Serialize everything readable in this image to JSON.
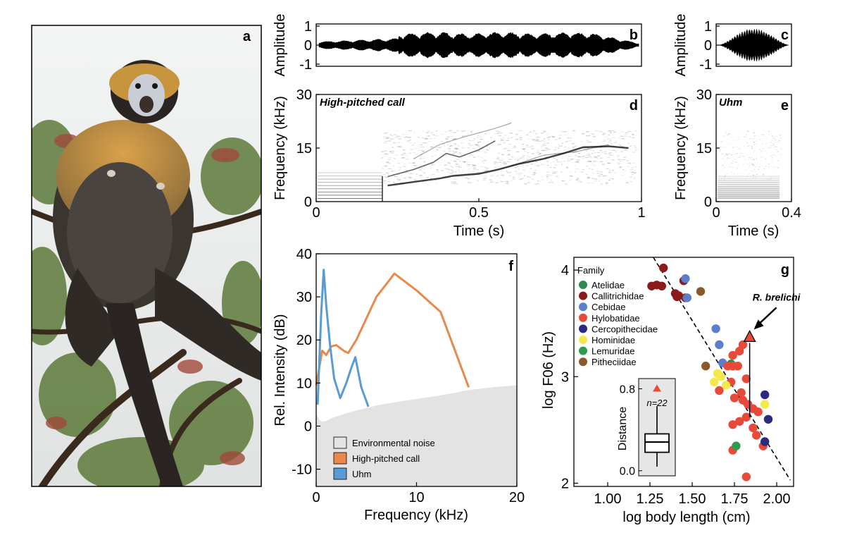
{
  "panels": {
    "a": {
      "letter": "a"
    },
    "b": {
      "letter": "b"
    },
    "c": {
      "letter": "c"
    },
    "d": {
      "letter": "d"
    },
    "e": {
      "letter": "e"
    },
    "f": {
      "letter": "f"
    },
    "g": {
      "letter": "g"
    }
  },
  "colors": {
    "high_pitched": "#e8894b",
    "uhm": "#5b9bd3",
    "noise": "#e3e3e3",
    "atelidae": "#2e8b4f",
    "callitrichidae": "#8b1a1a",
    "cebidae": "#5b7fcc",
    "hylobatidae": "#e84a3a",
    "cercopithecidae": "#2b2a80",
    "hominidae": "#f5e84a",
    "lemuridae": "#2e9b50",
    "pitheciidae": "#8b5a2b"
  },
  "chart_data": [
    {
      "panel": "b",
      "type": "line",
      "title": "",
      "xlabel": "",
      "ylabel": "Amplitude",
      "xlim": [
        0,
        1
      ],
      "ylim": [
        -1,
        1
      ],
      "yticks": [
        "1",
        "0",
        "-1"
      ]
    },
    {
      "panel": "c",
      "type": "line",
      "title": "",
      "xlabel": "",
      "ylabel": "Amplitude",
      "xlim": [
        0,
        0.4
      ],
      "ylim": [
        -1,
        1
      ],
      "yticks": [
        "1",
        "0",
        "-1"
      ]
    },
    {
      "panel": "d",
      "type": "heatmap",
      "title": "High-pitched call",
      "xlabel": "Time (s)",
      "ylabel": "Frequency (kHz)",
      "xlim": [
        0,
        1
      ],
      "ylim": [
        0,
        30
      ],
      "xticks": [
        "0",
        "0.5",
        "1"
      ],
      "yticks": [
        "30",
        "15",
        "0"
      ]
    },
    {
      "panel": "e",
      "type": "heatmap",
      "title": "Uhm",
      "xlabel": "Time (s)",
      "ylabel": "Frequency (kHz)",
      "xlim": [
        0,
        0.4
      ],
      "ylim": [
        0,
        30
      ],
      "xticks": [
        "0",
        "0.4"
      ],
      "yticks": [
        "30",
        "15",
        "0"
      ]
    },
    {
      "panel": "f",
      "type": "line",
      "title": "",
      "xlabel": "Frequency (kHz)",
      "ylabel": "Rel. Intensity (dB)",
      "xlim": [
        0,
        20
      ],
      "ylim": [
        -14,
        40
      ],
      "xticks": [
        "0",
        "10",
        "20"
      ],
      "yticks": [
        "40",
        "30",
        "20",
        "10",
        "0",
        "-10"
      ],
      "legend": [
        "Environmental noise",
        "High-pitched call",
        "Uhm"
      ],
      "legend_position": "bottom-right",
      "noise": {
        "name": "Environmental noise",
        "x": [
          0,
          0.3,
          0.6,
          1,
          1.5,
          2,
          3,
          4,
          5,
          6,
          8,
          10,
          12,
          14,
          15,
          16,
          18,
          20
        ],
        "y": [
          3,
          1.5,
          1,
          1.2,
          1.8,
          2.2,
          3,
          3.6,
          4.2,
          4.8,
          5.6,
          6.3,
          7,
          7.8,
          8.3,
          8.6,
          9.1,
          9.5
        ]
      },
      "series": [
        {
          "name": "High-pitched call",
          "x": [
            0,
            0.6,
            1.0,
            1.5,
            2.0,
            2.8,
            3.2,
            4.0,
            5.0,
            6.0,
            7.0,
            7.8,
            10.0,
            12.4,
            15.2
          ],
          "y": [
            9.5,
            17.5,
            16.5,
            18.5,
            18.8,
            17.4,
            17.0,
            20.0,
            25.0,
            30.0,
            33.0,
            35.4,
            31.5,
            26.5,
            9.0
          ]
        },
        {
          "name": "Uhm",
          "x": [
            0.15,
            0.5,
            0.75,
            1.0,
            1.4,
            1.8,
            2.4,
            3.0,
            3.5,
            3.9,
            4.5,
            5.2
          ],
          "y": [
            5.0,
            26.0,
            36.3,
            28.0,
            18.5,
            11.0,
            6.5,
            10.0,
            13.5,
            16.0,
            9.0,
            4.5
          ]
        }
      ]
    },
    {
      "panel": "g",
      "type": "scatter",
      "title": "",
      "xlabel": "log body length (cm)",
      "ylabel": "log F06 (Hz)",
      "xlim": [
        0.8,
        2.1
      ],
      "ylim": [
        1.97,
        4.12
      ],
      "xticks": [
        "1.00",
        "1.25",
        "1.50",
        "1.75",
        "2.00"
      ],
      "yticks": [
        "4",
        "3",
        "2"
      ],
      "legend_title": "Family",
      "legend_position": "top-left",
      "highlight": {
        "label": "R. brelichi",
        "x": 1.84,
        "y": 3.37,
        "y_pred": 2.62
      },
      "fit_line": {
        "x": [
          1.27,
          2.08
        ],
        "y": [
          4.12,
          2.03
        ]
      },
      "series": [
        {
          "name": "Atelidae",
          "color_key": "atelidae",
          "x": [
            1.73
          ],
          "y": [
            3.12
          ]
        },
        {
          "name": "Callitrichidae",
          "color_key": "callitrichidae",
          "x": [
            1.26,
            1.29,
            1.32,
            1.33,
            1.4,
            1.41,
            1.42,
            1.45,
            1.46
          ],
          "y": [
            3.85,
            3.86,
            3.85,
            4.02,
            3.78,
            3.75,
            3.76,
            3.9,
            3.74
          ]
        },
        {
          "name": "Cebidae",
          "color_key": "cebidae",
          "x": [
            1.46,
            1.47,
            1.64,
            1.66,
            1.68
          ],
          "y": [
            3.92,
            3.74,
            3.45,
            3.3,
            3.13
          ]
        },
        {
          "name": "Hylobatidae",
          "color_key": "hylobatidae",
          "x": [
            1.74,
            1.78,
            1.8,
            1.71,
            1.74,
            1.77,
            1.82,
            1.73,
            1.66,
            1.79,
            1.75,
            1.8,
            1.83,
            1.86,
            1.89,
            1.82,
            1.78,
            1.74,
            1.86,
            1.88,
            1.92,
            1.74,
            1.82
          ],
          "y": [
            3.2,
            3.24,
            3.3,
            3.1,
            3.1,
            3.1,
            2.98,
            2.95,
            2.87,
            2.85,
            2.8,
            2.78,
            2.74,
            2.7,
            2.67,
            2.62,
            2.58,
            2.55,
            2.52,
            2.45,
            2.35,
            2.31,
            2.06
          ]
        },
        {
          "name": "Cercopithecidae",
          "color_key": "cercopithecidae",
          "x": [
            1.93,
            1.95,
            1.93
          ],
          "y": [
            2.83,
            2.6,
            2.39
          ]
        },
        {
          "name": "Hominidae",
          "color_key": "hominidae",
          "x": [
            1.65,
            1.67,
            1.63,
            1.7,
            1.93
          ],
          "y": [
            3.03,
            3.0,
            2.95,
            2.92,
            2.74
          ]
        },
        {
          "name": "Lemuridae",
          "color_key": "lemuridae",
          "x": [
            1.76
          ],
          "y": [
            2.35
          ]
        },
        {
          "name": "Pitheciidae",
          "color_key": "pitheciidae",
          "x": [
            1.55,
            1.58
          ],
          "y": [
            3.8,
            3.1
          ]
        }
      ]
    },
    {
      "panel": "g-inset",
      "type": "bar",
      "title": "",
      "xlabel": "",
      "ylabel": "Distance",
      "ylim": [
        -0.05,
        0.9
      ],
      "yticks": [
        "0.8",
        "0.0"
      ],
      "annotation": "n=22",
      "box": {
        "whisker_low": 0.04,
        "q1": 0.18,
        "median": 0.28,
        "q3": 0.36,
        "whisker_high": 0.63
      },
      "highlight_value": 0.8
    }
  ]
}
